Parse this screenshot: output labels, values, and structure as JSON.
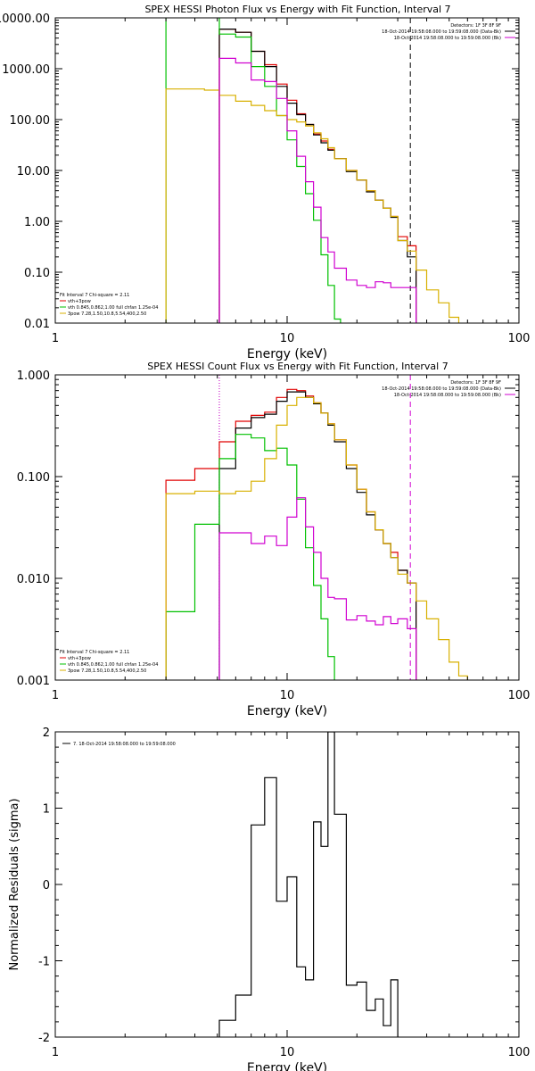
{
  "chart_data": [
    {
      "type": "line",
      "title": "SPEX HESSI Photon Flux vs Energy with Fit Function, Interval 7",
      "xlabel": "Energy (keV)",
      "ylabel": "",
      "xlim": [
        1,
        100
      ],
      "ylim": [
        0.01,
        10000
      ],
      "xscale": "log",
      "yscale": "log",
      "x_ticks": [
        1,
        10,
        100
      ],
      "x_tick_labels": [
        "1",
        "10",
        "100"
      ],
      "y_ticks": [
        0.01,
        0.1,
        1,
        10,
        100,
        1000,
        10000
      ],
      "y_tick_labels": [
        "0.01",
        "0.10",
        "1.00",
        "10.00",
        "100.00",
        "1000.00",
        "10000.00"
      ],
      "legend_top_right": [
        {
          "text": "Detectors: 1F 3F 8F 9F",
          "color": ""
        },
        {
          "text": "18-Oct-2014 19:58:08.000 to 19:59:08.000 (Data-Bk)",
          "color": "#000000"
        },
        {
          "text": "18-Oct-2014 19:58:08.000 to 19:59:08.000 (Bk)",
          "color": "#d000d0"
        }
      ],
      "legend_bottom_left": [
        {
          "text": "Fit Interval 7   Chi-square = 2.11",
          "color": ""
        },
        {
          "text": "vth+3pow",
          "color": "#e00000"
        },
        {
          "text": "vth 0.845,0.862,1.00  full chfan 1.25e-04",
          "color": "#00c000"
        },
        {
          "text": "3pow 7.28,1.50,10.8,5.54,400,2.50",
          "color": "#d8b000"
        }
      ],
      "vlines": [
        {
          "x": 5.1,
          "style": "dotted",
          "color": "#d000d0"
        },
        {
          "x": 34,
          "style": "dashed",
          "color": "#000000"
        }
      ],
      "series": [
        {
          "name": "vth+3pow",
          "color": "#e00000",
          "edges": [
            5.1,
            6,
            7,
            8,
            9,
            10,
            11,
            12,
            13,
            14,
            15,
            16,
            18,
            20,
            22,
            24,
            26,
            28,
            30,
            33,
            36
          ],
          "values": [
            6000,
            5200,
            2200,
            1200,
            500,
            240,
            130,
            80,
            52,
            38,
            26,
            17,
            10,
            6.5,
            4,
            2.6,
            1.8,
            1.25,
            0.5,
            0.33
          ]
        },
        {
          "name": "Data-Bk",
          "color": "#000000",
          "edges": [
            5.1,
            6,
            7,
            8,
            9,
            10,
            11,
            12,
            13,
            14,
            15,
            16,
            18,
            20,
            22,
            24,
            26,
            28,
            30,
            33,
            36
          ],
          "values": [
            6000,
            5200,
            2200,
            1100,
            450,
            210,
            125,
            80,
            50,
            35,
            25,
            17,
            9.5,
            6.5,
            3.8,
            2.6,
            1.8,
            1.2,
            0.42,
            0.2
          ]
        },
        {
          "name": "vth",
          "color": "#00c000",
          "edges": [
            3,
            5.1,
            6,
            7,
            8,
            9,
            10,
            11,
            12,
            13,
            14,
            15,
            16,
            17
          ],
          "values": [
            20000,
            4800,
            4200,
            1100,
            450,
            120,
            40,
            12,
            3.5,
            1.05,
            0.22,
            0.055,
            0.012
          ]
        },
        {
          "name": "3pow",
          "color": "#d8b000",
          "edges": [
            3,
            4.4,
            5.1,
            6,
            7,
            8,
            9,
            10,
            11,
            12,
            13,
            14,
            15,
            16,
            18,
            20,
            22,
            24,
            26,
            28,
            30,
            33,
            36,
            40,
            45,
            50,
            55,
            60
          ],
          "values": [
            400,
            380,
            300,
            230,
            190,
            150,
            120,
            100,
            90,
            75,
            55,
            42,
            28,
            17,
            10,
            6.5,
            4,
            2.6,
            1.8,
            1.25,
            0.42,
            0.26,
            0.11,
            0.045,
            0.025,
            0.013,
            0.009
          ]
        },
        {
          "name": "Bk",
          "color": "#d000d0",
          "edges": [
            5.1,
            6,
            7,
            8,
            9,
            10,
            11,
            12,
            13,
            14,
            15,
            16,
            18,
            20,
            22,
            24,
            26,
            28,
            30,
            33,
            36
          ],
          "values": [
            1600,
            1300,
            600,
            560,
            260,
            60,
            19,
            6,
            1.9,
            0.48,
            0.25,
            0.12,
            0.07,
            0.055,
            0.05,
            0.065,
            0.062,
            0.05,
            0.05,
            0.05
          ]
        }
      ]
    },
    {
      "type": "line",
      "title": "SPEX HESSI Count Flux vs Energy with Fit Function, Interval 7",
      "xlabel": "Energy (keV)",
      "ylabel": "",
      "xlim": [
        1,
        100
      ],
      "ylim": [
        0.001,
        1
      ],
      "xscale": "log",
      "yscale": "log",
      "x_ticks": [
        1,
        10,
        100
      ],
      "x_tick_labels": [
        "1",
        "10",
        "100"
      ],
      "y_ticks": [
        0.001,
        0.01,
        0.1,
        1
      ],
      "y_tick_labels": [
        "0.001",
        "0.010",
        "0.100",
        "1.000"
      ],
      "legend_top_right": [
        {
          "text": "Detectors: 1F 3F 8F 9F",
          "color": ""
        },
        {
          "text": "18-Oct-2014 19:58:08.000 to 19:59:08.000 (Data-Bk)",
          "color": "#000000"
        },
        {
          "text": "18-Oct-2014 19:58:08.000 to 19:59:08.000 (Bk)",
          "color": "#d000d0"
        }
      ],
      "legend_bottom_left": [
        {
          "text": "Fit Interval 7   Chi-square = 2.11",
          "color": ""
        },
        {
          "text": "vth+3pow",
          "color": "#e00000"
        },
        {
          "text": "vth 0.845,0.862,1.00  full chfan 1.25e-04",
          "color": "#00c000"
        },
        {
          "text": "3pow 7.28,1.50,10.8,5.54,400,2.50",
          "color": "#d8b000"
        }
      ],
      "vlines": [
        {
          "x": 5.1,
          "style": "dotted",
          "color": "#000000"
        },
        {
          "x": 5.1,
          "style": "dotted",
          "color": "#d000d0"
        },
        {
          "x": 34,
          "style": "dashed",
          "color": "#d000d0"
        }
      ],
      "series": [
        {
          "name": "vth+3pow",
          "color": "#e00000",
          "edges": [
            3,
            4,
            5.1,
            6,
            7,
            8,
            9,
            10,
            11,
            12,
            13,
            14,
            15,
            16,
            18,
            20,
            22,
            24,
            26,
            28,
            30,
            33,
            36
          ],
          "values": [
            0.092,
            0.12,
            0.22,
            0.35,
            0.4,
            0.43,
            0.6,
            0.72,
            0.7,
            0.62,
            0.53,
            0.42,
            0.33,
            0.23,
            0.13,
            0.075,
            0.045,
            0.03,
            0.022,
            0.018,
            0.012,
            0.009
          ]
        },
        {
          "name": "Data-Bk",
          "color": "#000000",
          "edges": [
            5.1,
            6,
            7,
            8,
            9,
            10,
            11,
            12,
            13,
            14,
            15,
            16,
            18,
            20,
            22,
            24,
            26,
            28,
            30,
            33,
            36
          ],
          "values": [
            0.12,
            0.3,
            0.38,
            0.41,
            0.55,
            0.68,
            0.68,
            0.6,
            0.52,
            0.42,
            0.32,
            0.22,
            0.12,
            0.07,
            0.042,
            0.03,
            0.022,
            0.016,
            0.012,
            0.009
          ]
        },
        {
          "name": "vth",
          "color": "#00c000",
          "edges": [
            3,
            4,
            5.1,
            6,
            7,
            8,
            9,
            10,
            11,
            12,
            13,
            14,
            15,
            16,
            17
          ],
          "values": [
            0.0047,
            0.034,
            0.15,
            0.26,
            0.24,
            0.18,
            0.19,
            0.13,
            0.06,
            0.02,
            0.0085,
            0.004,
            0.0017,
            0.0008
          ]
        },
        {
          "name": "3pow",
          "color": "#d8b000",
          "edges": [
            3,
            4,
            5.1,
            6,
            7,
            8,
            9,
            10,
            11,
            12,
            13,
            14,
            15,
            16,
            18,
            20,
            22,
            24,
            26,
            28,
            30,
            33,
            36,
            40,
            45,
            50,
            55,
            60
          ],
          "values": [
            0.068,
            0.072,
            0.068,
            0.072,
            0.09,
            0.15,
            0.32,
            0.5,
            0.6,
            0.6,
            0.53,
            0.42,
            0.33,
            0.23,
            0.13,
            0.075,
            0.045,
            0.03,
            0.022,
            0.016,
            0.011,
            0.009,
            0.006,
            0.004,
            0.0025,
            0.0015,
            0.0011
          ]
        },
        {
          "name": "Bk",
          "color": "#d000d0",
          "edges": [
            5.1,
            6,
            7,
            8,
            9,
            10,
            11,
            12,
            13,
            14,
            15,
            16,
            18,
            20,
            22,
            24,
            26,
            28,
            30,
            33,
            36
          ],
          "values": [
            0.028,
            0.028,
            0.022,
            0.026,
            0.021,
            0.04,
            0.062,
            0.032,
            0.018,
            0.01,
            0.0065,
            0.0063,
            0.0039,
            0.0043,
            0.0038,
            0.0035,
            0.0042,
            0.0036,
            0.004,
            0.0032
          ]
        }
      ]
    },
    {
      "type": "line",
      "title": "",
      "xlabel": "Energy (keV)",
      "ylabel": "Normalized Residuals (sigma)",
      "xlim": [
        1,
        100
      ],
      "ylim": [
        -2,
        2
      ],
      "xscale": "log",
      "yscale": "linear",
      "x_ticks": [
        1,
        10,
        100
      ],
      "x_tick_labels": [
        "1",
        "10",
        "100"
      ],
      "y_ticks": [
        -2,
        -1,
        0,
        1,
        2
      ],
      "y_tick_labels": [
        "-2",
        "-1",
        "0",
        "1",
        "2"
      ],
      "legend_top_left": [
        {
          "text": "7. 18-Oct-2014 19:58:08.000 to 19:59:08.000",
          "color": "#000000"
        }
      ],
      "series": [
        {
          "name": "7. 18-Oct-2014 19:58:08.000 to 19:59:08.000",
          "color": "#000000",
          "edges": [
            5.1,
            6,
            7,
            8,
            9,
            10,
            11,
            12,
            13,
            14,
            15,
            16,
            18,
            20,
            22,
            24,
            26,
            28,
            30,
            33,
            36
          ],
          "values": [
            -1.78,
            -1.45,
            0.78,
            1.4,
            -0.22,
            0.1,
            -1.08,
            -1.25,
            0.82,
            0.5,
            2.0,
            0.92,
            -1.32,
            -1.28,
            -1.65,
            -1.5,
            -1.85,
            -1.25,
            -2.1,
            -2.1
          ]
        }
      ]
    }
  ]
}
